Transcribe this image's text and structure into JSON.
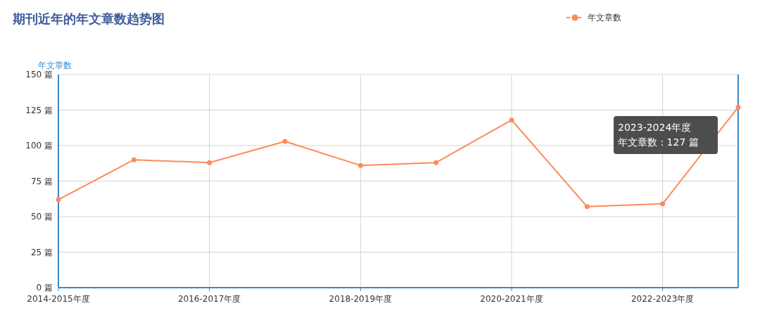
{
  "chart_data": {
    "type": "line",
    "title": "期刊近年的年文章数趋势图",
    "ylabel": "年文章数",
    "categories": [
      "2014-2015年度",
      null,
      "2016-2017年度",
      null,
      "2018-2019年度",
      null,
      "2020-2021年度",
      null,
      "2022-2023年度",
      null
    ],
    "series": [
      {
        "name": "年文章数",
        "color": "#ff8a5b",
        "values": [
          62,
          90,
          88,
          103,
          86,
          88,
          118,
          57,
          59,
          127
        ]
      }
    ],
    "ylim": [
      0,
      150
    ],
    "yticks": [
      {
        "value": 0,
        "label": "0 篇"
      },
      {
        "value": 25,
        "label": "25 篇"
      },
      {
        "value": 50,
        "label": "50 篇"
      },
      {
        "value": 75,
        "label": "75 篇"
      },
      {
        "value": 100,
        "label": "100 篇"
      },
      {
        "value": 125,
        "label": "125 篇"
      },
      {
        "value": 150,
        "label": "150 篇"
      }
    ],
    "grid": true,
    "legend": "top right",
    "marker": "circle",
    "line_style": "solid",
    "annotations": [
      "2023-2024年度",
      "年文章数 : 127 篇"
    ]
  }
}
